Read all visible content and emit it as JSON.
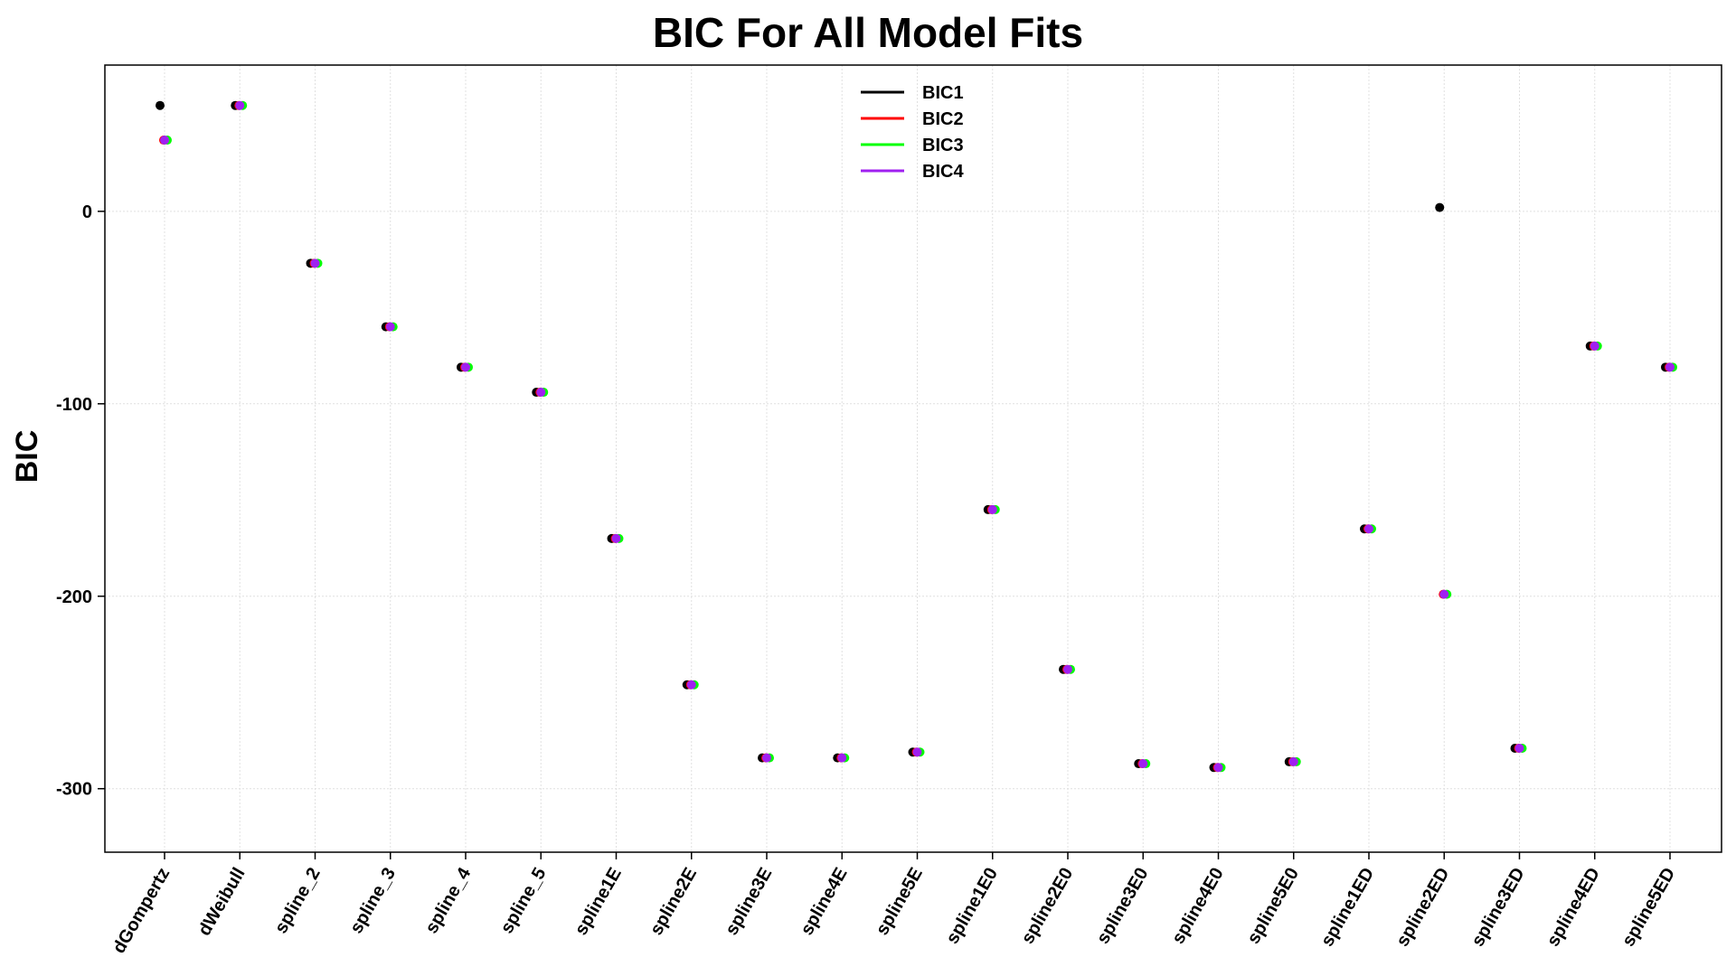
{
  "chart_data": {
    "type": "scatter",
    "title": "BIC For All Model Fits",
    "xlabel": "",
    "ylabel": "BIC",
    "ylim": [
      -333,
      76
    ],
    "yticks": [
      0,
      -100,
      -200,
      -300
    ],
    "grid": true,
    "legend": "top-center",
    "categories": [
      "dGompertz",
      "dWeibull",
      "spline_2",
      "spline_3",
      "spline_4",
      "spline_5",
      "spline1E",
      "spline2E",
      "spline3E",
      "spline4E",
      "spline5E",
      "spline1E0",
      "spline2E0",
      "spline3E0",
      "spline4E0",
      "spline5E0",
      "spline1ED",
      "spline2ED",
      "spline3ED",
      "spline4ED",
      "spline5ED"
    ],
    "series": [
      {
        "name": "BIC1",
        "color": "#000000",
        "values": [
          55,
          55,
          -27,
          -60,
          -81,
          -94,
          -170,
          -246,
          -284,
          -284,
          -281,
          -155,
          -238,
          -287,
          -289,
          -286,
          -165,
          2,
          -279,
          -70,
          -81
        ]
      },
      {
        "name": "BIC2",
        "color": "#ff0000",
        "values": [
          37,
          55,
          -27,
          -60,
          -81,
          -94,
          -170,
          -246,
          -284,
          -284,
          -281,
          -155,
          -238,
          -287,
          -289,
          -286,
          -165,
          -199,
          -279,
          -70,
          -81
        ]
      },
      {
        "name": "BIC3",
        "color": "#00ff00",
        "values": [
          37,
          55,
          -27,
          -60,
          -81,
          -94,
          -170,
          -246,
          -284,
          -284,
          -281,
          -155,
          -238,
          -287,
          -289,
          -286,
          -165,
          -199,
          -279,
          -70,
          -81
        ]
      },
      {
        "name": "BIC4",
        "color": "#a020f0",
        "values": [
          37,
          55,
          -27,
          -60,
          -81,
          -94,
          -170,
          -246,
          -284,
          -284,
          -281,
          -155,
          -238,
          -287,
          -289,
          -286,
          -165,
          -199,
          -279,
          -70,
          -81
        ]
      }
    ]
  }
}
